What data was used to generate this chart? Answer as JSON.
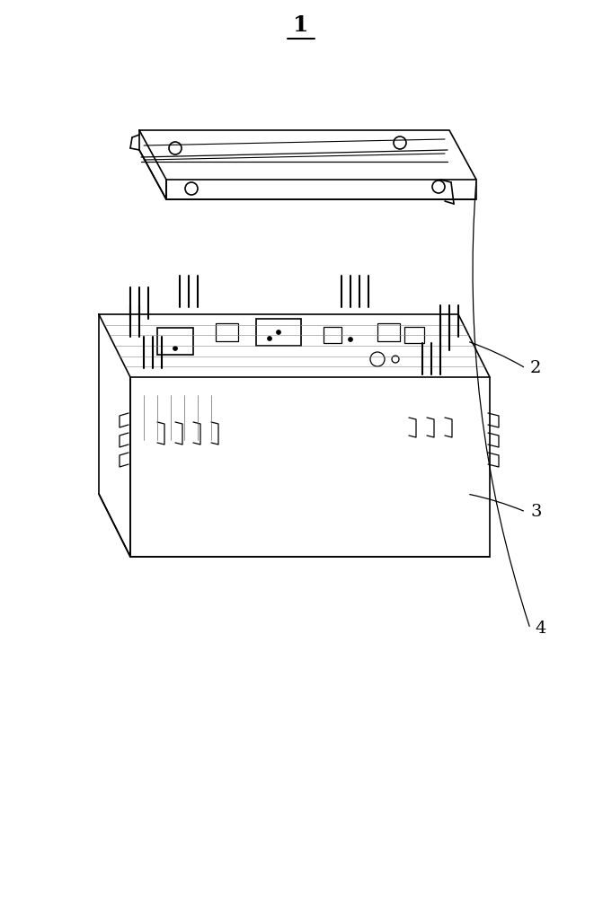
{
  "title_label": "1",
  "label_4": "4",
  "label_2": "2",
  "label_3": "3",
  "bg_color": "#ffffff",
  "line_color": "#000000",
  "line_width": 1.2,
  "fig_width": 6.71,
  "fig_height": 10.0
}
